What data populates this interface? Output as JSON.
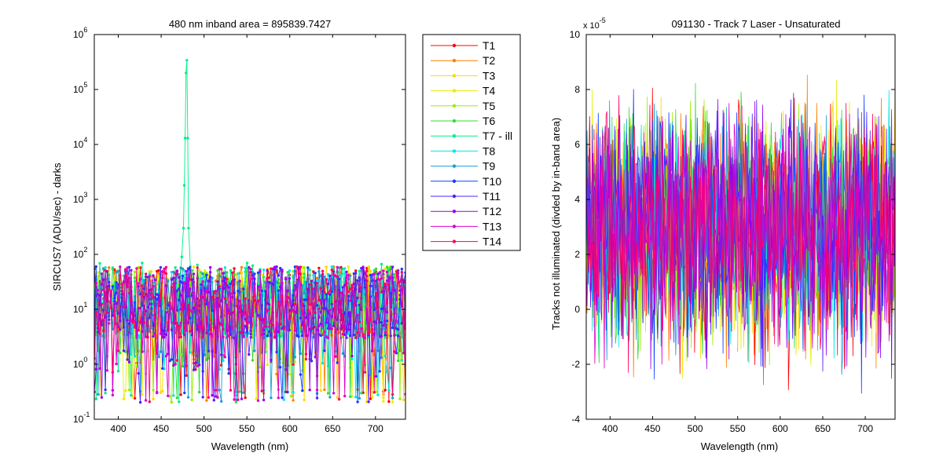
{
  "chart_data": [
    {
      "type": "line",
      "title": "480 nm     inband area = 895839.7427",
      "xlabel": "Wavelength (nm)",
      "ylabel": "SIRCUS7  (ADU/sec) - darks",
      "xlim": [
        372,
        735
      ],
      "ylim": [
        0.1,
        1000000
      ],
      "yscale": "log",
      "x_ticks": [
        400,
        450,
        500,
        550,
        600,
        650,
        700
      ],
      "y_ticks": [
        0.1,
        1,
        10,
        100,
        1000,
        10000,
        100000,
        1000000
      ],
      "y_tick_labels": [
        {
          "base": "10",
          "exp": "-1"
        },
        {
          "base": "10",
          "exp": "0"
        },
        {
          "base": "10",
          "exp": "1"
        },
        {
          "base": "10",
          "exp": "2"
        },
        {
          "base": "10",
          "exp": "3"
        },
        {
          "base": "10",
          "exp": "4"
        },
        {
          "base": "10",
          "exp": "5"
        },
        {
          "base": "10",
          "exp": "6"
        }
      ],
      "markers": true,
      "legend_position": "outside-right",
      "series": [
        {
          "name": "T1",
          "color": "#ff0000",
          "noise": {
            "median": 20,
            "floor": 0.2,
            "ceil": 60
          }
        },
        {
          "name": "T2",
          "color": "#ff7f00",
          "noise": {
            "median": 20,
            "floor": 0.2,
            "ceil": 60
          }
        },
        {
          "name": "T3",
          "color": "#ffd700",
          "noise": {
            "median": 20,
            "floor": 0.2,
            "ceil": 60
          }
        },
        {
          "name": "T4",
          "color": "#e6f000",
          "noise": {
            "median": 20,
            "floor": 0.2,
            "ceil": 60
          }
        },
        {
          "name": "T5",
          "color": "#99ee00",
          "noise": {
            "median": 20,
            "floor": 0.2,
            "ceil": 60
          }
        },
        {
          "name": "T6",
          "color": "#33dd33",
          "noise": {
            "median": 20,
            "floor": 0.2,
            "ceil": 60
          }
        },
        {
          "name": "T7 - ill",
          "color": "#00ee88",
          "noise": {
            "median": 22,
            "floor": 0.2,
            "ceil": 70
          },
          "peak": {
            "x": [
              472,
              474,
              476,
              477,
              478,
              479,
              480,
              481,
              482,
              484
            ],
            "y": [
              40,
              90,
              300,
              1800,
              13000,
              200000,
              340000,
              13000,
              300,
              60
            ]
          }
        },
        {
          "name": "T8",
          "color": "#00e5e5",
          "noise": {
            "median": 20,
            "floor": 0.2,
            "ceil": 60
          }
        },
        {
          "name": "T9",
          "color": "#1a9fd6",
          "noise": {
            "median": 20,
            "floor": 0.2,
            "ceil": 60
          }
        },
        {
          "name": "T10",
          "color": "#1040ff",
          "noise": {
            "median": 20,
            "floor": 0.2,
            "ceil": 60
          }
        },
        {
          "name": "T11",
          "color": "#5020ff",
          "noise": {
            "median": 20,
            "floor": 0.2,
            "ceil": 60
          }
        },
        {
          "name": "T12",
          "color": "#9900ee",
          "noise": {
            "median": 20,
            "floor": 0.2,
            "ceil": 60
          }
        },
        {
          "name": "T13",
          "color": "#dd00cc",
          "noise": {
            "median": 20,
            "floor": 0.2,
            "ceil": 60
          }
        },
        {
          "name": "T14",
          "color": "#ff0066",
          "noise": {
            "median": 20,
            "floor": 0.2,
            "ceil": 60
          }
        }
      ]
    },
    {
      "type": "line",
      "title": "091130 - Track 7 Laser - Unsaturated",
      "xlabel": "Wavelength (nm)",
      "ylabel": "Tracks not illuminated (divded by in-band area)",
      "xlim": [
        372,
        735
      ],
      "ylim": [
        -4,
        10
      ],
      "y_multiplier": {
        "base": "x 10",
        "exp": "-5"
      },
      "x_ticks": [
        400,
        450,
        500,
        550,
        600,
        650,
        700
      ],
      "y_ticks": [
        -4,
        -2,
        0,
        2,
        4,
        6,
        8,
        10
      ],
      "markers": false,
      "noise": {
        "median": 2.8,
        "low": -3.8,
        "high": 8.6
      },
      "series_colors": [
        "#ff0000",
        "#ff7f00",
        "#ffd700",
        "#e6f000",
        "#99ee00",
        "#33dd33",
        "#00e5e5",
        "#1a9fd6",
        "#1040ff",
        "#5020ff",
        "#9900ee",
        "#dd00cc",
        "#ff0066"
      ]
    }
  ]
}
